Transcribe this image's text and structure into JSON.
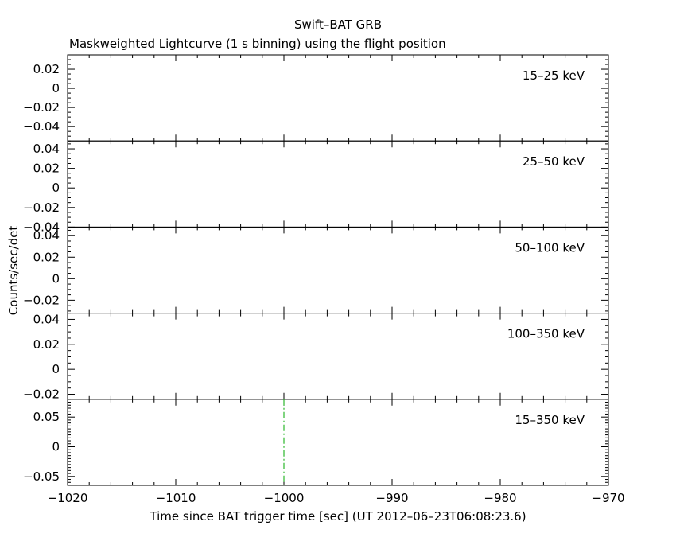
{
  "chart_data": {
    "type": "line",
    "title": "Swift–BAT GRB",
    "subtitle": "Maskweighted Lightcurve (1 s binning) using the flight position",
    "xlabel": "Time since BAT trigger time [sec] (UT 2012–06–23T06:08:23.6)",
    "ylabel": "Counts/sec/det",
    "xlim": [
      -1020,
      -970
    ],
    "x_ticks": [
      -1020,
      -1010,
      -1000,
      -990,
      -980,
      -970
    ],
    "x_tick_labels": [
      "−1020",
      "−1010",
      "−1000",
      "−990",
      "−980",
      "−970"
    ],
    "trigger_marker": {
      "x": -1000,
      "color": "#00aa00",
      "style": "dash-dot"
    },
    "panels": [
      {
        "band": "15–25 keV",
        "color": "#000000",
        "ylim": [
          -0.055,
          0.035
        ],
        "ticks": [
          0.02,
          0,
          -0.02,
          -0.04
        ],
        "tick_labels": [
          "0.02",
          "0",
          "−0.02",
          "−0.04"
        ],
        "series": []
      },
      {
        "band": "25–50 keV",
        "color": "#ff0000",
        "ylim": [
          -0.04,
          0.048
        ],
        "ticks": [
          0.04,
          0.02,
          0,
          -0.02,
          -0.04
        ],
        "tick_labels": [
          "0.04",
          "0.02",
          "0",
          "−0.02",
          "−0.04"
        ],
        "series": []
      },
      {
        "band": "50–100 keV",
        "color": "#00ff00",
        "ylim": [
          -0.032,
          0.048
        ],
        "ticks": [
          0.04,
          0.02,
          0,
          -0.02
        ],
        "tick_labels": [
          "0.04",
          "0.02",
          "0",
          "−0.02"
        ],
        "series": []
      },
      {
        "band": "100–350 keV",
        "color": "#0000ff",
        "ylim": [
          -0.024,
          0.045
        ],
        "ticks": [
          0.04,
          0.02,
          0,
          -0.02
        ],
        "tick_labels": [
          "0.04",
          "0.02",
          "0",
          "−0.02"
        ],
        "series": []
      },
      {
        "band": "15–350 keV",
        "color": "#ff00ff",
        "ylim": [
          -0.065,
          0.08
        ],
        "ticks": [
          0.05,
          0,
          -0.05
        ],
        "tick_labels": [
          "0.05",
          "0",
          "−0.05"
        ],
        "series": []
      }
    ]
  }
}
